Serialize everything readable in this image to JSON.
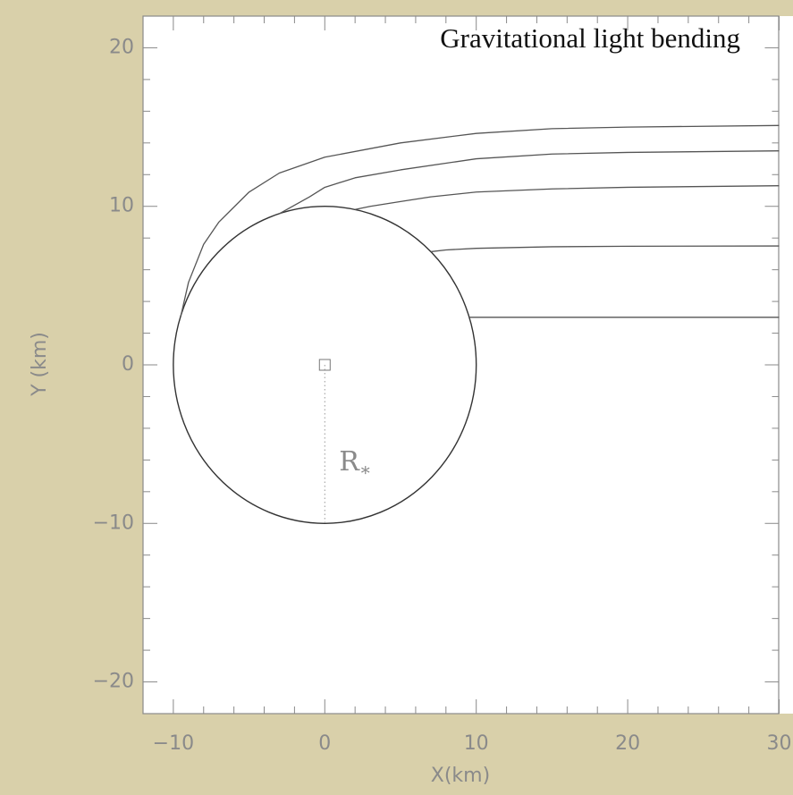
{
  "chart_data": {
    "type": "line",
    "title": "Gravitational light bending",
    "x_label": "X(km)",
    "y_label": "Y (km)",
    "xlim": [
      -12,
      30
    ],
    "ylim": [
      -22,
      22
    ],
    "xticks": [
      {
        "value": -10,
        "label": "−10"
      },
      0,
      10,
      20,
      30
    ],
    "yticks": [
      {
        "value": -20,
        "label": "−20"
      },
      {
        "value": -10,
        "label": "−10"
      },
      0,
      10,
      20
    ],
    "xminorticks": [
      -12,
      -8,
      -6,
      -4,
      -2,
      2,
      4,
      6,
      8,
      12,
      14,
      16,
      18,
      22,
      24,
      26,
      28
    ],
    "yminorticks": [
      -22,
      -18,
      -16,
      -14,
      -12,
      -8,
      -6,
      -4,
      -2,
      2,
      4,
      6,
      8,
      12,
      14,
      16,
      18,
      22
    ],
    "series": [
      {
        "color": "#555555",
        "x": [
          -9.5,
          -9,
          -8,
          -7,
          -5,
          -3,
          0,
          5,
          10,
          15,
          20,
          30
        ],
        "values": [
          3.1,
          5.2,
          7.6,
          9.0,
          10.9,
          12.1,
          13.1,
          14.0,
          14.6,
          14.9,
          15.0,
          15.1
        ]
      },
      {
        "color": "#555555",
        "x": [
          -3,
          -1,
          0,
          2,
          5,
          10,
          15,
          20,
          30
        ],
        "values": [
          9.54,
          10.6,
          11.2,
          11.8,
          12.3,
          13.0,
          13.3,
          13.4,
          13.5
        ]
      },
      {
        "color": "#555555",
        "x": [
          2,
          3,
          5,
          7,
          10,
          15,
          20,
          30
        ],
        "values": [
          9.8,
          10.0,
          10.3,
          10.6,
          10.9,
          11.1,
          11.2,
          11.3
        ]
      },
      {
        "color": "#555555",
        "x": [
          7,
          8,
          10,
          15,
          20,
          30
        ],
        "values": [
          7.14,
          7.25,
          7.35,
          7.45,
          7.48,
          7.5
        ]
      },
      {
        "color": "#555555",
        "x": [
          9.54,
          30
        ],
        "values": [
          3.0,
          3.0
        ]
      }
    ],
    "star": {
      "center_x": 0,
      "center_y": 0,
      "radius": 10,
      "color": "#333333"
    },
    "radius_label": {
      "text": "R",
      "subscript": "∗"
    }
  }
}
